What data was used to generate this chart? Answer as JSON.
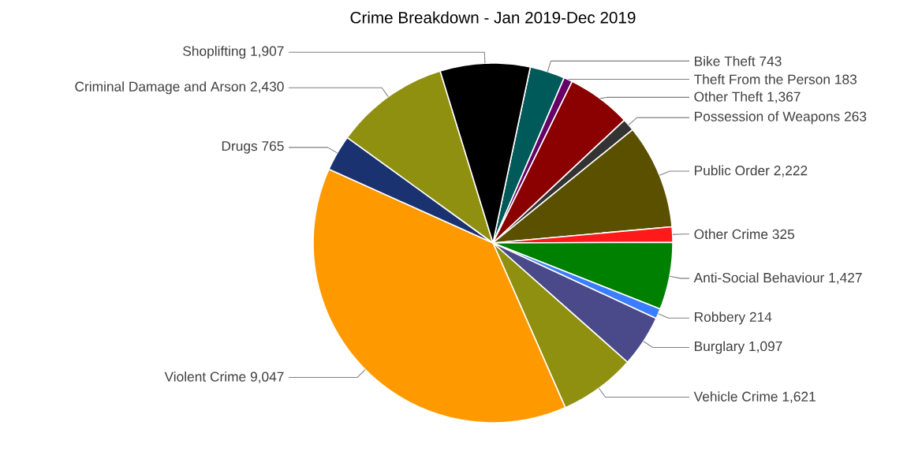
{
  "chart_data": {
    "type": "pie",
    "title": "Crime Breakdown - Jan 2019-Dec 2019",
    "categories": [
      "Bike Theft",
      "Theft From the Person",
      "Other Theft",
      "Possession of Weapons",
      "Public Order",
      "Other Crime",
      "Anti-Social Behaviour",
      "Robbery",
      "Burglary",
      "Vehicle Crime",
      "Violent Crime",
      "Drugs",
      "Criminal Damage and Arson",
      "Shoplifting"
    ],
    "values": [
      743,
      183,
      1367,
      263,
      2222,
      325,
      1427,
      214,
      1097,
      1621,
      9047,
      765,
      2430,
      1907
    ],
    "value_labels": [
      "743",
      "183",
      "1,367",
      "263",
      "2,222",
      "325",
      "1,427",
      "214",
      "1,097",
      "1,621",
      "9,047",
      "765",
      "2,430",
      "1,907"
    ],
    "colors": [
      "#005a5a",
      "#660066",
      "#8b0000",
      "#333333",
      "#5a5000",
      "#ff1a1a",
      "#008000",
      "#3b7dff",
      "#4a4a8a",
      "#8f8f10",
      "#ff9900",
      "#1a3370",
      "#8f8f10",
      "#000000"
    ]
  }
}
